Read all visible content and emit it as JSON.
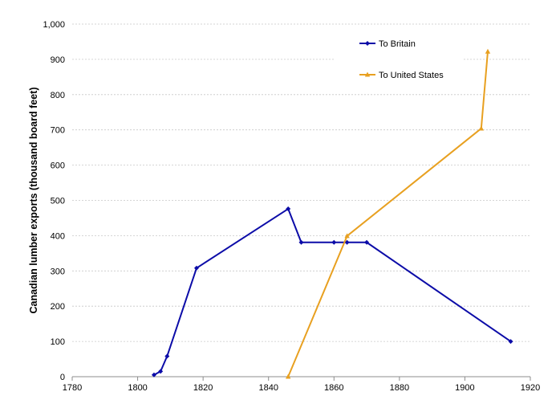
{
  "chart_data": {
    "type": "line",
    "title": "",
    "xlabel": "",
    "ylabel": "Canadian lumber exports (thousand board feet)",
    "xlim": [
      1780,
      1920
    ],
    "ylim": [
      0,
      1000
    ],
    "x_ticks": [
      "1780",
      "1800",
      "1820",
      "1840",
      "1860",
      "1880",
      "1900",
      "1920"
    ],
    "y_ticks": [
      "0",
      "100",
      "200",
      "300",
      "400",
      "500",
      "600",
      "700",
      "800",
      "900",
      "1,000"
    ],
    "grid": true,
    "legend_position": "top-right",
    "series": [
      {
        "name": "To Britain",
        "color": "#0c0ca8",
        "marker": "diamond",
        "points": [
          {
            "x": 1805,
            "y": 5
          },
          {
            "x": 1807,
            "y": 15
          },
          {
            "x": 1809,
            "y": 58
          },
          {
            "x": 1818,
            "y": 308
          },
          {
            "x": 1846,
            "y": 476
          },
          {
            "x": 1850,
            "y": 381
          },
          {
            "x": 1860,
            "y": 381
          },
          {
            "x": 1864,
            "y": 381
          },
          {
            "x": 1870,
            "y": 381
          },
          {
            "x": 1914,
            "y": 100
          }
        ]
      },
      {
        "name": "To United States",
        "color": "#e8a020",
        "marker": "triangle",
        "points": [
          {
            "x": 1846,
            "y": 0
          },
          {
            "x": 1864,
            "y": 399
          },
          {
            "x": 1905,
            "y": 704
          },
          {
            "x": 1907,
            "y": 922
          }
        ]
      }
    ]
  }
}
